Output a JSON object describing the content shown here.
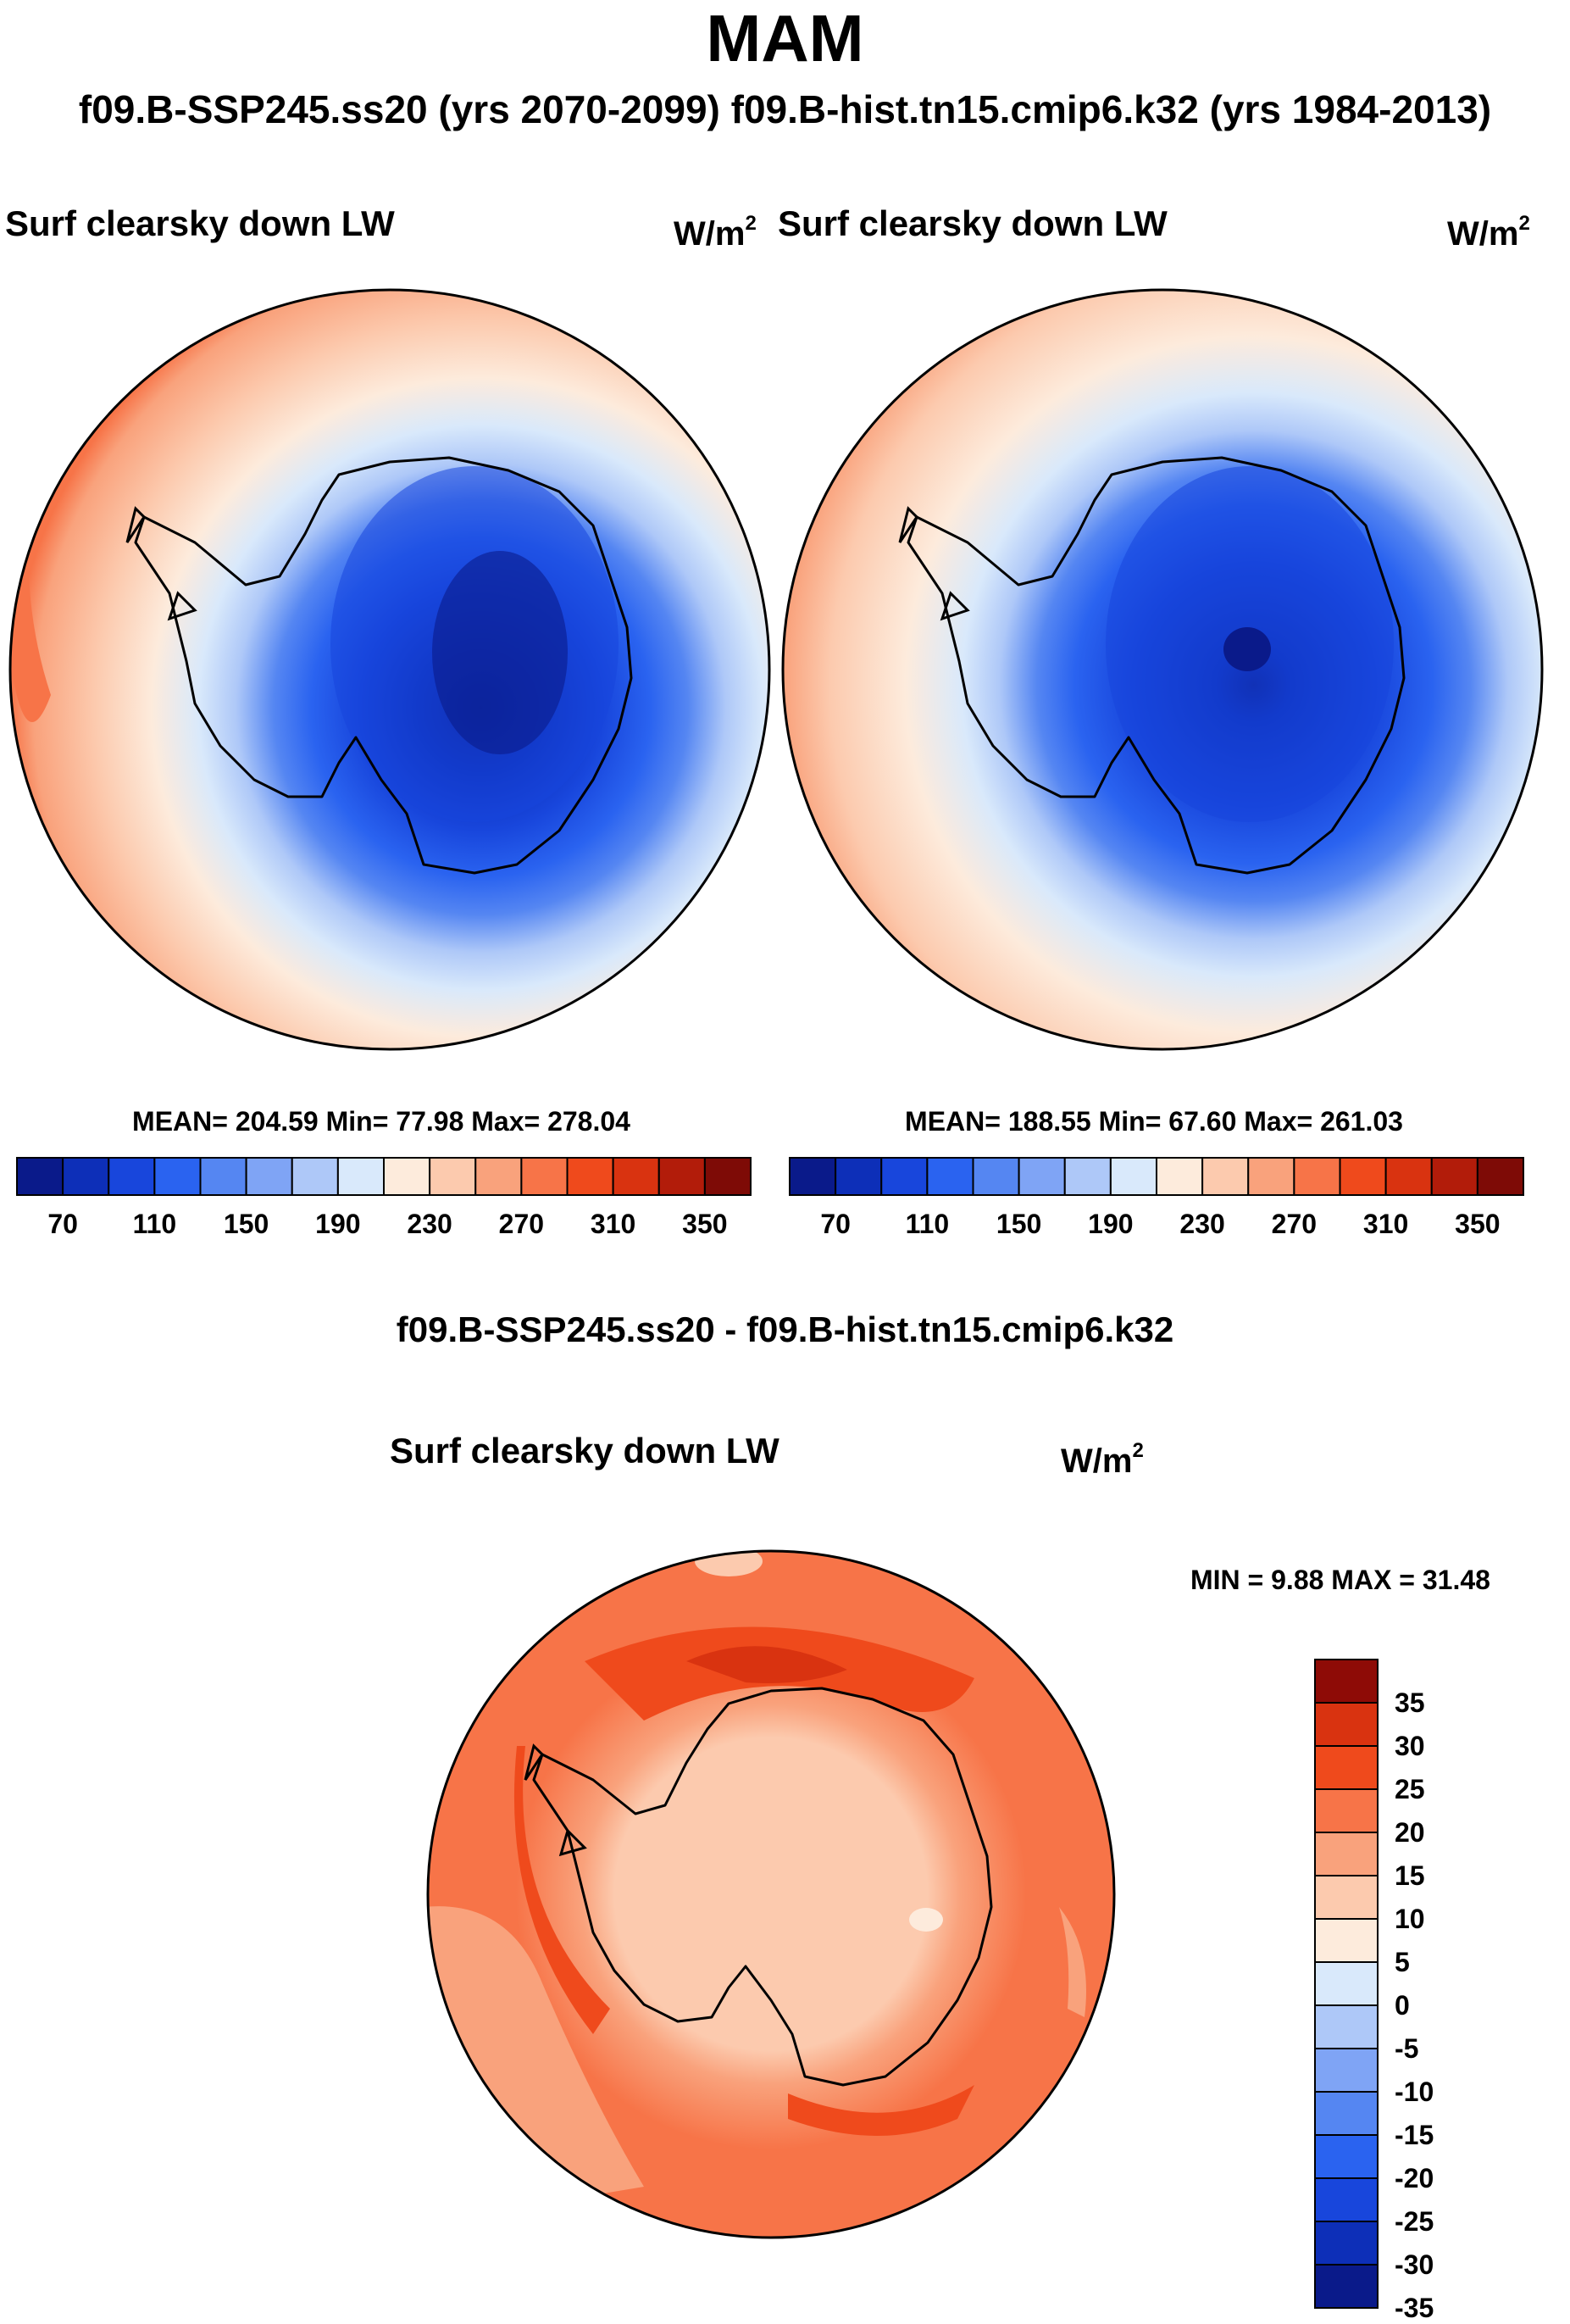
{
  "season": "MAM",
  "comparison_header": "f09.B-SSP245.ss20 (yrs 2070-2099)  f09.B-hist.tn15.cmip6.k32 (yrs 1984-2013)",
  "panels": [
    {
      "variable": "Surf clearsky down LW",
      "units_base": "W/m",
      "units_exp": "2",
      "stats": "MEAN= 204.59  Min=  77.98  Max= 278.04"
    },
    {
      "variable": "Surf clearsky down LW",
      "units_base": "W/m",
      "units_exp": "2",
      "stats": "MEAN= 188.55  Min=  67.60  Max= 261.03"
    }
  ],
  "difference": {
    "title": "f09.B-SSP245.ss20 - f09.B-hist.tn15.cmip6.k32",
    "variable": "Surf clearsky down LW",
    "units_base": "W/m",
    "units_exp": "2",
    "stats": "MIN =   9.88 MAX =  31.48"
  },
  "abs_colorbar": {
    "colors": [
      "#0a1a8a",
      "#0d2fb8",
      "#1846dc",
      "#2a63f0",
      "#5586f2",
      "#7fa4f5",
      "#aec8f8",
      "#d9e9fb",
      "#fdebdc",
      "#fccaae",
      "#f9a27c",
      "#f77448",
      "#ef4a1c",
      "#d93310",
      "#b21c0a",
      "#7e0b06"
    ],
    "tick_labels": [
      "70",
      "110",
      "150",
      "190",
      "230",
      "270",
      "310",
      "350"
    ]
  },
  "diff_colorbar": {
    "colors": [
      "#0a1a8a",
      "#0d2fb8",
      "#1846dc",
      "#2a63f0",
      "#5586f2",
      "#7fa4f5",
      "#aec8f8",
      "#d9e9fb",
      "#fdebdc",
      "#fccaae",
      "#f9a27c",
      "#f77448",
      "#ef4a1c",
      "#d93310",
      "#8e0b06"
    ],
    "tick_labels": [
      "35",
      "30",
      "25",
      "20",
      "15",
      "10",
      "5",
      "0",
      "-5",
      "-10",
      "-15",
      "-20",
      "-25",
      "-30",
      "-35"
    ]
  }
}
